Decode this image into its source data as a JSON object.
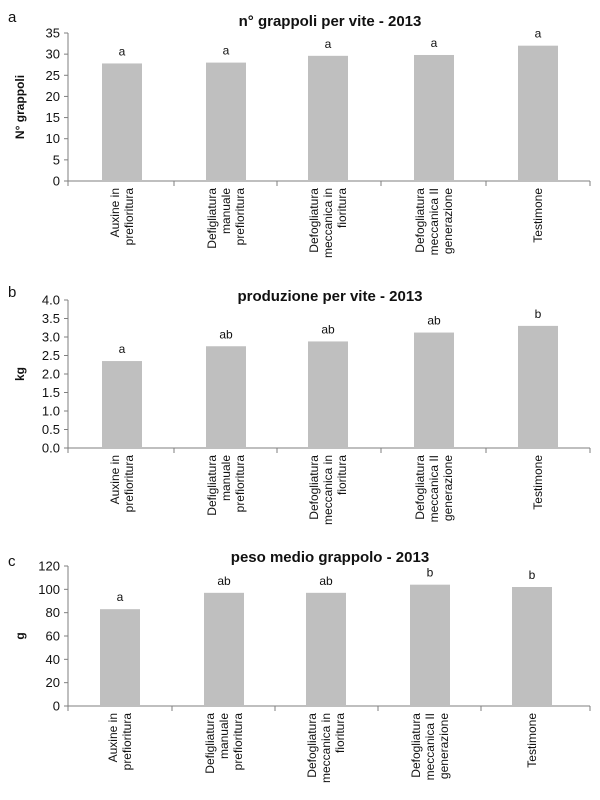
{
  "chart_data": [
    {
      "panel": "a",
      "type": "bar",
      "title": "n° grappoli per vite - 2013",
      "xlabel": "",
      "ylabel": "N° grappoli",
      "ylim": [
        0,
        35
      ],
      "yticks": [
        0,
        5,
        10,
        15,
        20,
        25,
        30,
        35
      ],
      "ytick_labels": [
        "0",
        "5",
        "10",
        "15",
        "20",
        "25",
        "30",
        "35"
      ],
      "categories": [
        [
          "Auxine in",
          "prefioritura"
        ],
        [
          "Defigliatura",
          "manuale",
          "prefioritura"
        ],
        [
          "Defogliatura",
          "meccanica in",
          "fioritura"
        ],
        [
          "Defogliatura",
          "meccanica II",
          "generazione"
        ],
        [
          "Testimone"
        ]
      ],
      "values": [
        27.8,
        28.0,
        29.6,
        29.8,
        32.0
      ],
      "significance": [
        "a",
        "a",
        "a",
        "a",
        "a"
      ],
      "bar_color": "#bfbfbf",
      "grid": false
    },
    {
      "panel": "b",
      "type": "bar",
      "title": "produzione per vite - 2013",
      "xlabel": "",
      "ylabel": "kg",
      "ylim": [
        0,
        4
      ],
      "yticks": [
        0,
        0.5,
        1,
        1.5,
        2,
        2.5,
        3,
        3.5,
        4
      ],
      "ytick_labels": [
        "0.0",
        "0.5",
        "1.0",
        "1.5",
        "2.0",
        "2.5",
        "3.0",
        "3.5",
        "4.0"
      ],
      "categories": [
        [
          "Auxine in",
          "prefioritura"
        ],
        [
          "Defigliatura",
          "manuale",
          "prefioritura"
        ],
        [
          "Defogliatura",
          "meccanica in",
          "fioritura"
        ],
        [
          "Defogliatura",
          "meccanica II",
          "generazione"
        ],
        [
          "Testimone"
        ]
      ],
      "values": [
        2.35,
        2.75,
        2.88,
        3.12,
        3.3
      ],
      "significance": [
        "a",
        "ab",
        "ab",
        "ab",
        "b"
      ],
      "bar_color": "#bfbfbf",
      "grid": false
    },
    {
      "panel": "c",
      "type": "bar",
      "title": "peso medio grappolo - 2013",
      "xlabel": "",
      "ylabel": "g",
      "ylim": [
        0,
        120
      ],
      "yticks": [
        0,
        20,
        40,
        60,
        80,
        100,
        120
      ],
      "ytick_labels": [
        "0",
        "20",
        "40",
        "60",
        "80",
        "100",
        "120"
      ],
      "categories": [
        [
          "Auxine in",
          "prefioritura"
        ],
        [
          "Defigliatura",
          "manuale",
          "prefioritura"
        ],
        [
          "Defogliatura",
          "meccanica in",
          "fioritura"
        ],
        [
          "Defogliatura",
          "meccanica II",
          "generazione"
        ],
        [
          "Testimone"
        ]
      ],
      "values": [
        83,
        97,
        97,
        104,
        102
      ],
      "significance": [
        "a",
        "ab",
        "ab",
        "b",
        "b"
      ],
      "bar_color": "#bfbfbf",
      "grid": false
    }
  ]
}
